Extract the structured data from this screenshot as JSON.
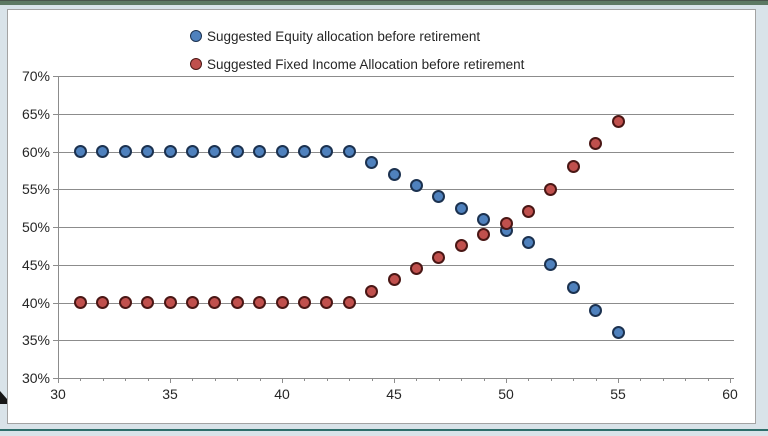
{
  "theme": {
    "page_bg": "#d9e3e9",
    "top_accent": "#5d7963",
    "bottom_accent": "#2e6e6b",
    "chart_bg": "#ffffff",
    "chart_border": "#a3a3a3",
    "grid_color": "#8c8c8c",
    "text_color": "#262626"
  },
  "chart_data": {
    "type": "scatter",
    "title": "",
    "xlabel": "",
    "ylabel": "",
    "x": [
      31,
      32,
      33,
      34,
      35,
      36,
      37,
      38,
      39,
      40,
      41,
      42,
      43,
      44,
      45,
      46,
      47,
      48,
      49,
      50,
      51,
      52,
      53,
      54,
      55
    ],
    "series": [
      {
        "name": "Suggested Equity allocation before retirement",
        "marker_fill": "#4F81BD",
        "marker_border": "#1c3250",
        "values": [
          60,
          60,
          60,
          60,
          60,
          60,
          60,
          60,
          60,
          60,
          60,
          60,
          60,
          58.5,
          57,
          55.5,
          54,
          52.5,
          51,
          49.5,
          48,
          45,
          42,
          39,
          36
        ]
      },
      {
        "name": "Suggested Fixed Income Allocation before retirement",
        "marker_fill": "#C0504D",
        "marker_border": "#4a1715",
        "values": [
          40,
          40,
          40,
          40,
          40,
          40,
          40,
          40,
          40,
          40,
          40,
          40,
          40,
          41.5,
          43,
          44.5,
          46,
          47.5,
          49,
          50.5,
          52,
          55,
          58,
          61,
          64
        ]
      }
    ],
    "xlim": [
      30,
      60
    ],
    "ylim": [
      30,
      70
    ],
    "x_tick_values": [
      30,
      35,
      40,
      45,
      50,
      55,
      60
    ],
    "x_tick_labels": [
      "30",
      "35",
      "40",
      "45",
      "50",
      "55",
      "60"
    ],
    "x_minor_tick_step": 1,
    "y_tick_values": [
      70,
      65,
      60,
      55,
      50,
      45,
      40,
      35,
      30
    ],
    "y_tick_labels": [
      "70%",
      "65%",
      "60%",
      "55%",
      "50%",
      "45%",
      "40%",
      "35%",
      "30%"
    ],
    "gridlines": "horizontal",
    "legend_position": "top-center"
  }
}
